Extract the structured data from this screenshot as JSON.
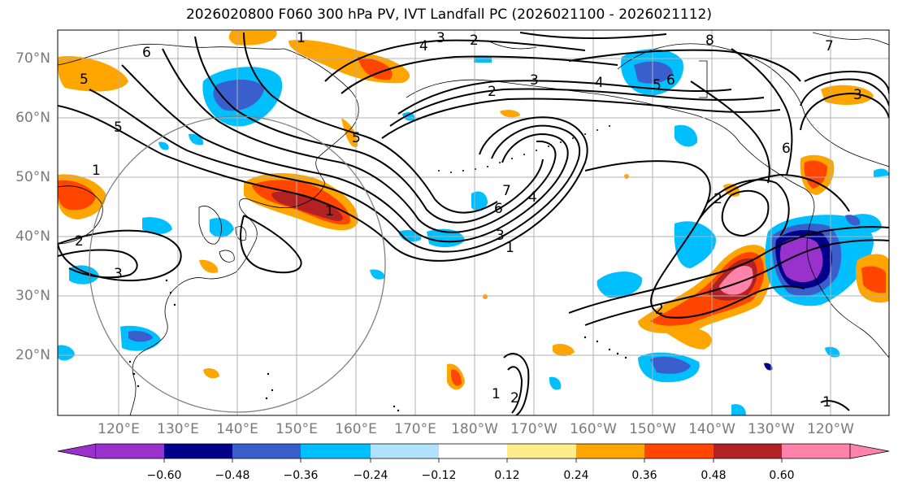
{
  "title": "2026020800 F060 300 hPa PV, IVT Landfall PC (2026021100 - 2026021112)",
  "lat_labels": [
    "70°N",
    "60°N",
    "50°N",
    "40°N",
    "30°N",
    "20°N"
  ],
  "lon_labels": [
    "120°E",
    "130°E",
    "140°E",
    "150°E",
    "160°E",
    "170°E",
    "180°W",
    "170°W",
    "160°W",
    "150°W",
    "140°W",
    "130°W",
    "120°W"
  ],
  "colorbar": {
    "ticks": [
      "−0.60",
      "−0.48",
      "−0.36",
      "−0.24",
      "−0.12",
      "0.12",
      "0.24",
      "0.36",
      "0.48",
      "0.60"
    ],
    "colors": [
      "#9932cc",
      "#00008b",
      "#3a5fcd",
      "#00bfff",
      "#b0e2ff",
      "#ffffff",
      "#ffec8b",
      "#ffa500",
      "#ff4500",
      "#b22222",
      "#ff82ab"
    ]
  },
  "contour_labels": [
    "1",
    "2",
    "3",
    "4",
    "5",
    "6",
    "7",
    "8"
  ],
  "colors": {
    "gridline": "#b0b0b0",
    "contour": "#000000",
    "circle": "#808080",
    "coast": "#000000"
  }
}
